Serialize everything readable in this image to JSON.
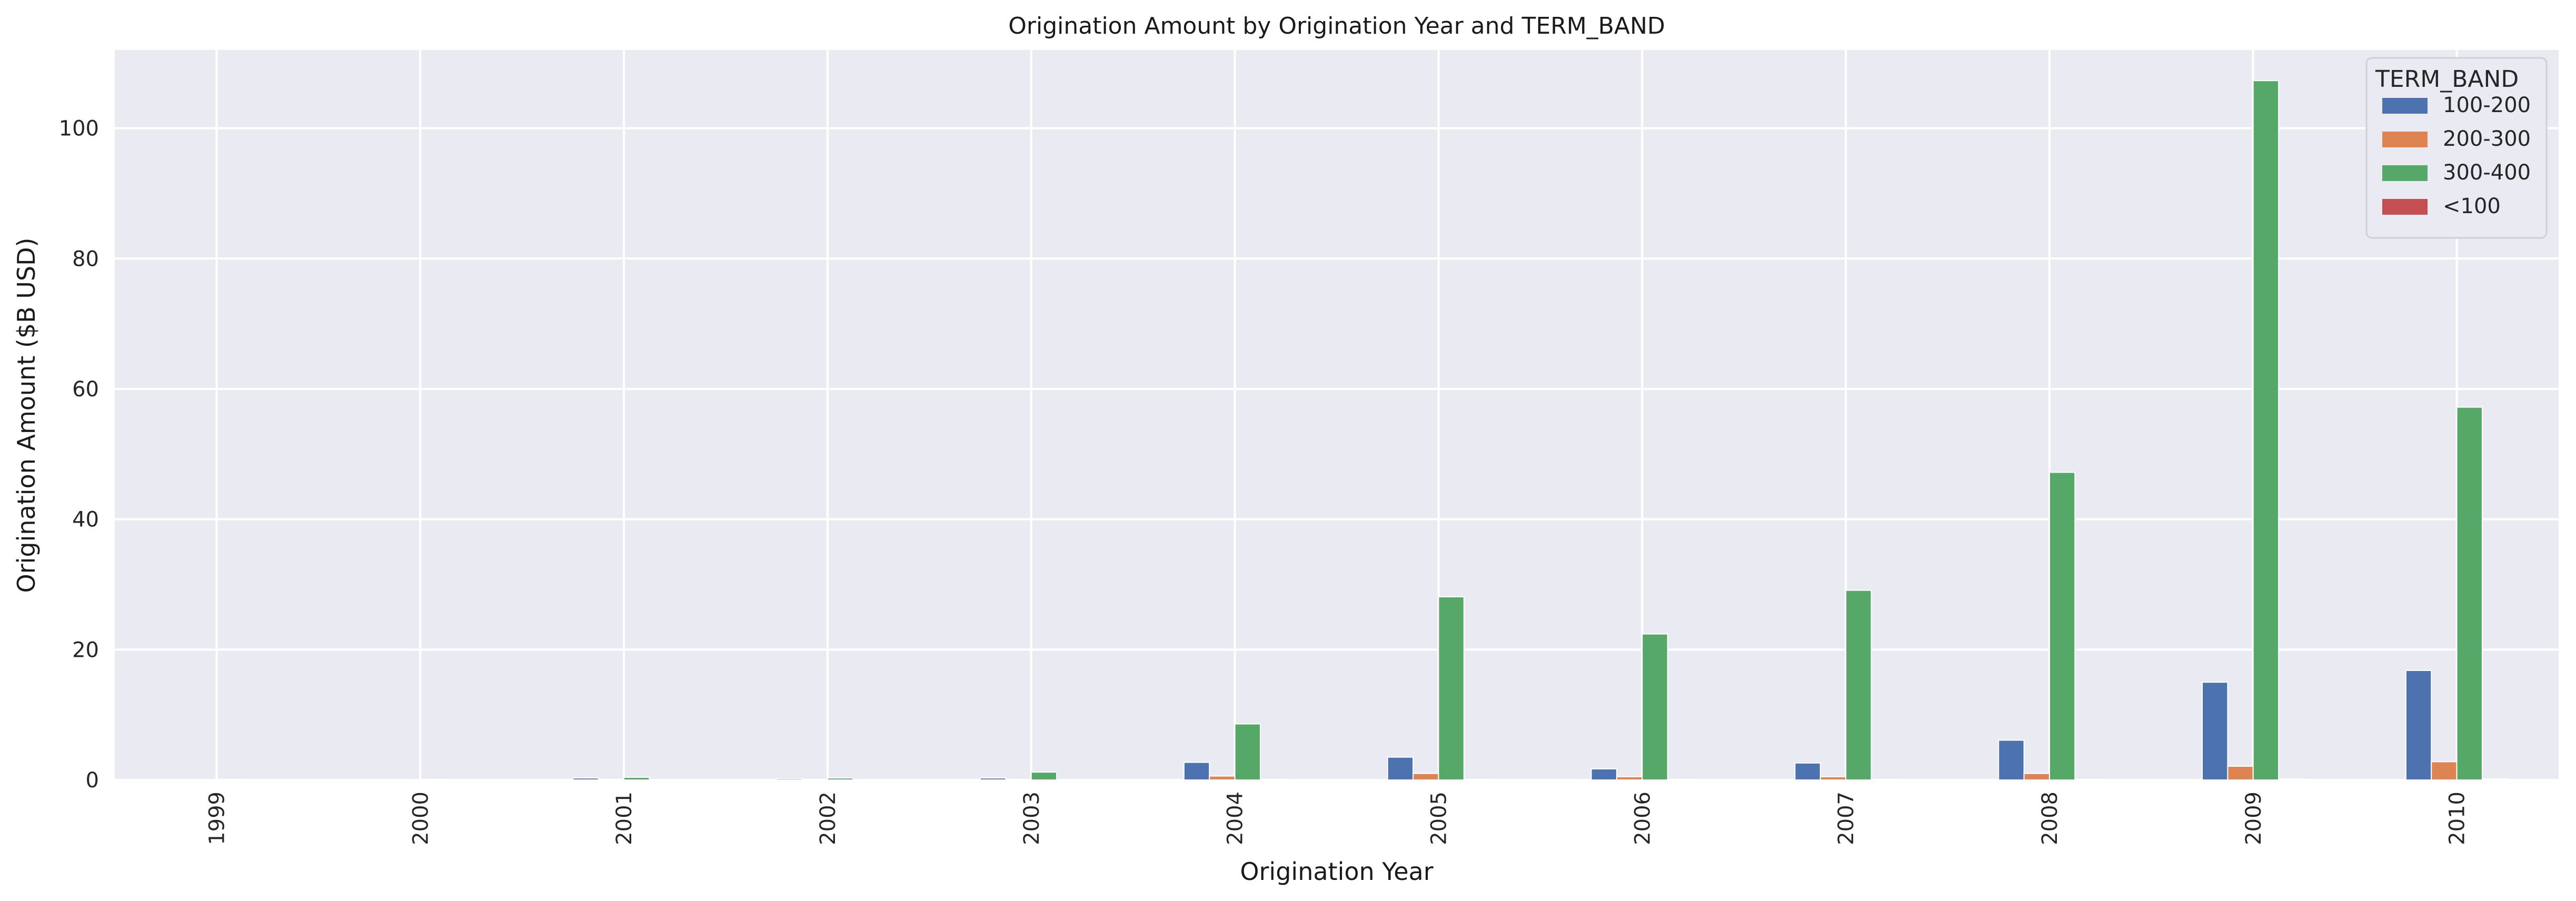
{
  "chart_data": {
    "type": "bar",
    "title": "Origination Amount by Origination Year and TERM_BAND",
    "xlabel": "Origination Year",
    "ylabel": "Origination Amount ($B USD)",
    "ylim": [
      0,
      112
    ],
    "yticks": [
      0,
      20,
      40,
      60,
      80,
      100
    ],
    "grid": true,
    "legend": {
      "title": "TERM_BAND",
      "position": "top-right"
    },
    "categories": [
      "1999",
      "2000",
      "2001",
      "2002",
      "2003",
      "2004",
      "2005",
      "2006",
      "2007",
      "2008",
      "2009",
      "2010"
    ],
    "series": [
      {
        "name": "100-200",
        "color": "#4c72b0",
        "values": [
          0.05,
          0.05,
          0.3,
          0.2,
          0.3,
          2.7,
          3.5,
          1.7,
          2.6,
          6.1,
          15.0,
          16.8
        ]
      },
      {
        "name": "200-300",
        "color": "#dd8452",
        "values": [
          0.02,
          0.02,
          0.1,
          0.1,
          0.1,
          0.6,
          1.0,
          0.5,
          0.5,
          1.0,
          2.1,
          2.8
        ]
      },
      {
        "name": "300-400",
        "color": "#55a868",
        "values": [
          0.1,
          0.1,
          0.4,
          0.3,
          1.2,
          8.6,
          28.1,
          22.4,
          29.1,
          47.2,
          107.3,
          57.2
        ]
      },
      {
        "name": "<100",
        "color": "#c44e52",
        "values": [
          0.0,
          0.0,
          0.05,
          0.05,
          0.05,
          0.1,
          0.1,
          0.1,
          0.1,
          0.1,
          0.15,
          0.15
        ]
      }
    ]
  }
}
